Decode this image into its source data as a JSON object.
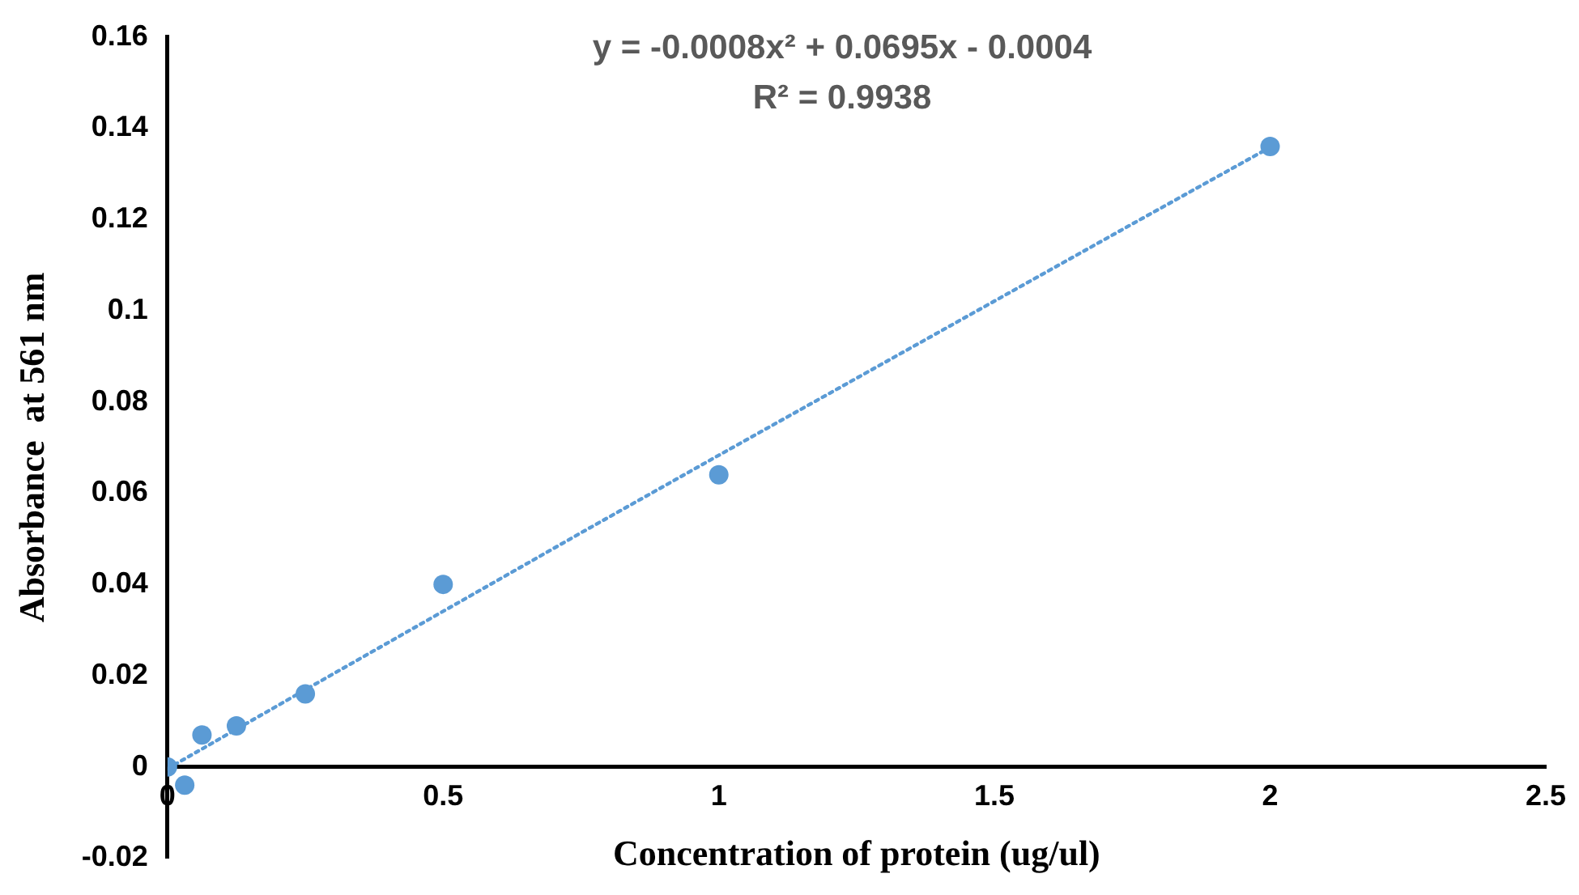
{
  "chart_data": {
    "type": "scatter",
    "xlabel": "Concentration of protein (ug/ul)",
    "ylabel": "Absorbance  at 561 nm",
    "annotations": [
      "y = -0.0008x² + 0.0695x - 0.0004",
      "R² = 0.9938"
    ],
    "series": [
      {
        "type": "scatter",
        "color": "#5b9bd5",
        "marker": "circle",
        "x": [
          0,
          0.03125,
          0.0625,
          0.125,
          0.25,
          0.5,
          1,
          2
        ],
        "values": [
          0,
          -0.004,
          0.007,
          0.009,
          0.016,
          0.04,
          0.064,
          0.136
        ]
      },
      {
        "type": "line",
        "color": "#5b9bd5",
        "line_style": "dotted",
        "marker": "none",
        "x": [
          0,
          0.25,
          0.5,
          0.75,
          1,
          1.25,
          1.5,
          1.75,
          2
        ],
        "values": [
          -0.0004,
          0.0169,
          0.0341,
          0.0513,
          0.0683,
          0.0852,
          0.1021,
          0.119,
          0.1358
        ]
      }
    ],
    "xlim": [
      0,
      2.5
    ],
    "xticks": [
      0,
      0.5,
      1,
      1.5,
      2,
      2.5
    ],
    "ylim": [
      -0.02,
      0.16
    ],
    "yticks": [
      -0.02,
      0,
      0.02,
      0.04,
      0.06,
      0.08,
      0.1,
      0.12,
      0.14,
      0.16
    ],
    "grid": false,
    "legend": false
  }
}
